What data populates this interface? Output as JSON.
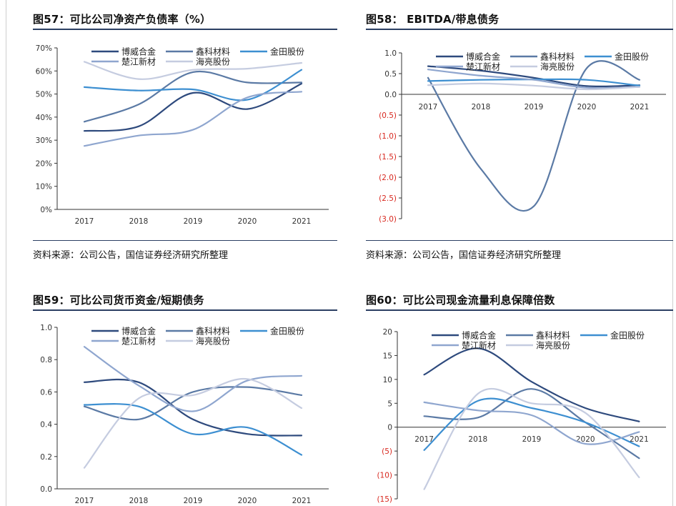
{
  "panels": [
    {
      "title": "图57：可比公司净资产负债率（%）",
      "source": "资料来源：公司公告，国信证券经济研究所整理"
    },
    {
      "title": "图58： EBITDA/带息债务",
      "source": "资料来源：公司公告，国信证券经济研究所整理"
    },
    {
      "title": "图59：可比公司货币资金/短期债务",
      "source": ""
    },
    {
      "title": "图60：可比公司现金流量利息保障倍数",
      "source": ""
    }
  ],
  "colors": {
    "博威合金": "#2e4a7d",
    "鑫科材料": "#5b7aa5",
    "金田股份": "#3d8fd1",
    "楚江新材": "#8fa6cf",
    "海亮股份": "#c5cce0",
    "negative_tick": "#d8281f"
  },
  "chart_data": [
    {
      "type": "line",
      "title": "图57：可比公司净资产负债率（%）",
      "x": [
        "2017",
        "2018",
        "2019",
        "2020",
        "2021"
      ],
      "ylim": [
        0,
        70
      ],
      "yticks": [
        0,
        10,
        20,
        30,
        40,
        50,
        60,
        70
      ],
      "ytick_labels": [
        "0%",
        "10%",
        "20%",
        "30%",
        "40%",
        "50%",
        "60%",
        "70%"
      ],
      "legend": "top",
      "series": [
        {
          "name": "博威合金",
          "values": [
            34,
            36,
            50.5,
            43.5,
            54.5
          ]
        },
        {
          "name": "鑫科材料",
          "values": [
            38,
            45.5,
            59.5,
            55,
            55
          ]
        },
        {
          "name": "金田股份",
          "values": [
            53,
            51.5,
            52,
            47.5,
            60.5
          ]
        },
        {
          "name": "楚江新材",
          "values": [
            27.5,
            32,
            34.5,
            48.5,
            51
          ]
        },
        {
          "name": "海亮股份",
          "values": [
            64,
            56.5,
            60.5,
            61,
            63.5
          ]
        }
      ]
    },
    {
      "type": "line",
      "title": "图58： EBITDA/带息债务",
      "x": [
        "2017",
        "2018",
        "2019",
        "2020",
        "2021"
      ],
      "ylim": [
        -3,
        1
      ],
      "yticks": [
        1,
        0.5,
        0,
        -0.5,
        -1,
        -1.5,
        -2,
        -2.5,
        -3
      ],
      "ytick_labels": [
        "1.0",
        "0.5",
        "0.0",
        "(0.5)",
        "(1.0)",
        "(1.5)",
        "(2.0)",
        "(2.5)",
        "(3.0)"
      ],
      "legend": "top",
      "series": [
        {
          "name": "博威合金",
          "values": [
            0.68,
            0.57,
            0.4,
            0.2,
            0.22
          ]
        },
        {
          "name": "鑫科材料",
          "values": [
            0.4,
            -1.8,
            -2.7,
            0.63,
            0.35
          ]
        },
        {
          "name": "金田股份",
          "values": [
            0.32,
            0.35,
            0.36,
            0.35,
            0.21
          ]
        },
        {
          "name": "楚江新材",
          "values": [
            0.6,
            0.45,
            0.35,
            0.16,
            0.18
          ]
        },
        {
          "name": "海亮股份",
          "values": [
            0.22,
            0.26,
            0.21,
            0.12,
            0.18
          ]
        }
      ]
    },
    {
      "type": "line",
      "title": "图59：可比公司货币资金/短期债务",
      "x": [
        "2017",
        "2018",
        "2019",
        "2020",
        "2021"
      ],
      "ylim": [
        0,
        1
      ],
      "yticks": [
        0,
        0.2,
        0.4,
        0.6,
        0.8,
        1.0
      ],
      "ytick_labels": [
        "0.0",
        "0.2",
        "0.4",
        "0.6",
        "0.8",
        "1.0"
      ],
      "legend": "top",
      "series": [
        {
          "name": "博威合金",
          "values": [
            0.66,
            0.66,
            0.43,
            0.34,
            0.33
          ]
        },
        {
          "name": "鑫科材料",
          "values": [
            0.51,
            0.43,
            0.6,
            0.63,
            0.58
          ]
        },
        {
          "name": "金田股份",
          "values": [
            0.52,
            0.51,
            0.34,
            0.38,
            0.21
          ]
        },
        {
          "name": "楚江新材",
          "values": [
            0.88,
            0.64,
            0.48,
            0.67,
            0.7
          ]
        },
        {
          "name": "海亮股份",
          "values": [
            0.13,
            0.56,
            0.58,
            0.68,
            0.5
          ]
        }
      ]
    },
    {
      "type": "line",
      "title": "图60：可比公司现金流量利息保障倍数",
      "x": [
        "2017",
        "2018",
        "2019",
        "2020",
        "2021"
      ],
      "ylim": [
        -15,
        20
      ],
      "yticks": [
        20,
        15,
        10,
        5,
        0,
        -5,
        -10,
        -15
      ],
      "ytick_labels": [
        "20",
        "15",
        "10",
        "5",
        "0",
        "(5)",
        "(10)",
        "(15)"
      ],
      "legend": "top",
      "series": [
        {
          "name": "博威合金",
          "values": [
            11,
            16.5,
            9.5,
            4,
            1.2
          ]
        },
        {
          "name": "鑫科材料",
          "values": [
            2.3,
            2,
            8,
            1,
            -6.5
          ]
        },
        {
          "name": "金田股份",
          "values": [
            -4.8,
            5.5,
            4,
            1,
            -4
          ]
        },
        {
          "name": "楚江新材",
          "values": [
            5.2,
            3.5,
            2.5,
            -3.5,
            -1
          ]
        },
        {
          "name": "海亮股份",
          "values": [
            -13,
            7,
            5,
            3,
            -10.5
          ]
        }
      ]
    }
  ]
}
